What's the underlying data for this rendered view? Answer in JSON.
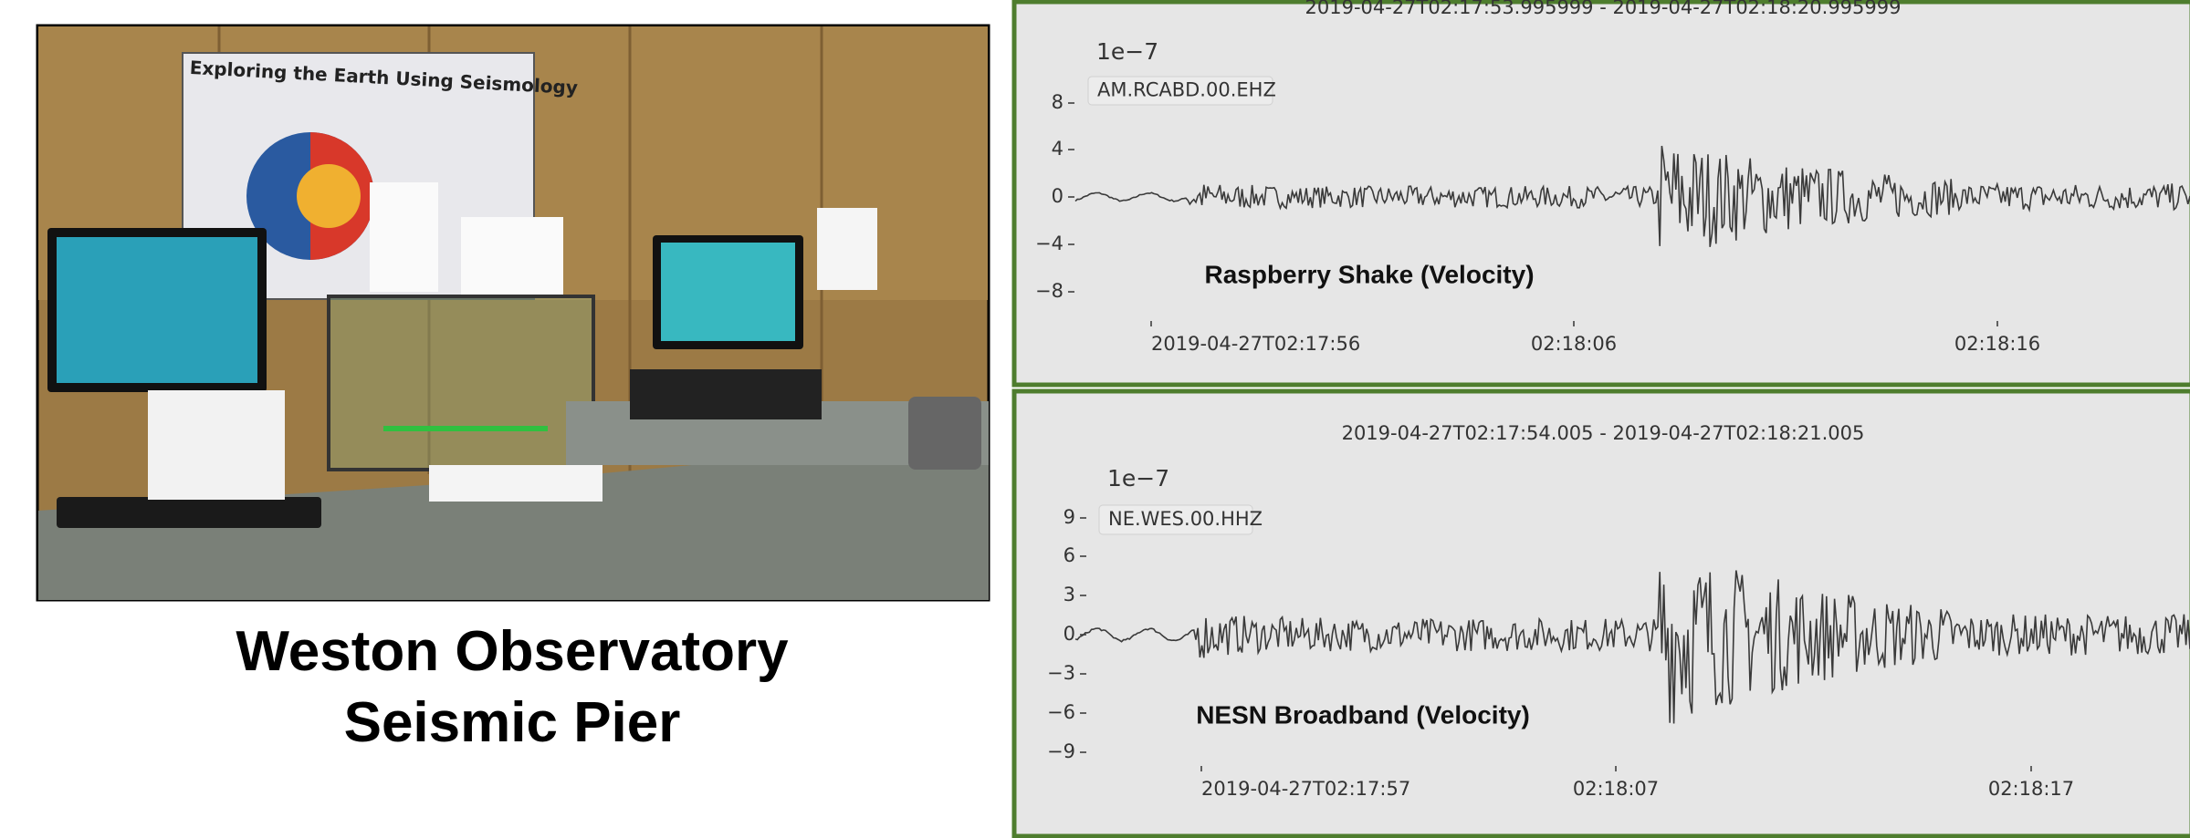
{
  "photo": {
    "poster_title": "Exploring the Earth Using Seismology"
  },
  "caption": {
    "line1": "Weston Observatory",
    "line2": "Seismic Pier"
  },
  "panels": [
    {
      "time_range": "2019-04-27T02:17:53.995999  -  2019-04-27T02:18:20.995999",
      "scale": "1e−7",
      "station": "AM.RCABD.00.EHZ",
      "yticks": [
        "8",
        "4",
        "0",
        "−4",
        "−8"
      ],
      "annotation": "Raspberry Shake (Velocity)",
      "xticks": [
        "2019-04-27T02:17:56",
        "02:18:06",
        "02:18:16"
      ]
    },
    {
      "time_range": "2019-04-27T02:17:54.005  -  2019-04-27T02:18:21.005",
      "scale": "1e−7",
      "station": "NE.WES.00.HHZ",
      "yticks": [
        "9",
        "6",
        "3",
        "0",
        "−3",
        "−6",
        "−9"
      ],
      "annotation": "NESN Broadband (Velocity)",
      "xticks": [
        "2019-04-27T02:17:57",
        "02:18:07",
        "02:18:17"
      ]
    }
  ]
}
